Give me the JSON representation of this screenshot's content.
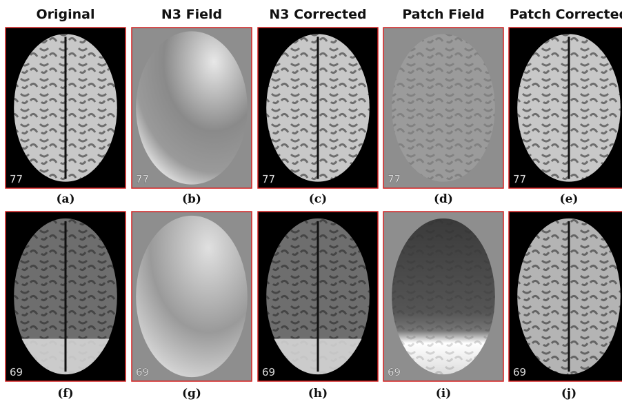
{
  "columns": [
    "Original",
    "N3 Field",
    "N3 Corrected",
    "Patch Field",
    "Patch Corrected"
  ],
  "rows": [
    {
      "slices": [
        "77",
        "77",
        "77",
        "77",
        "77"
      ],
      "captions": [
        "(a)",
        "(b)",
        "(c)",
        "(d)",
        "(e)"
      ]
    },
    {
      "slices": [
        "69",
        "69",
        "69",
        "69",
        "69"
      ],
      "captions": [
        "(f)",
        "(g)",
        "(h)",
        "(i)",
        "(j)"
      ]
    }
  ]
}
